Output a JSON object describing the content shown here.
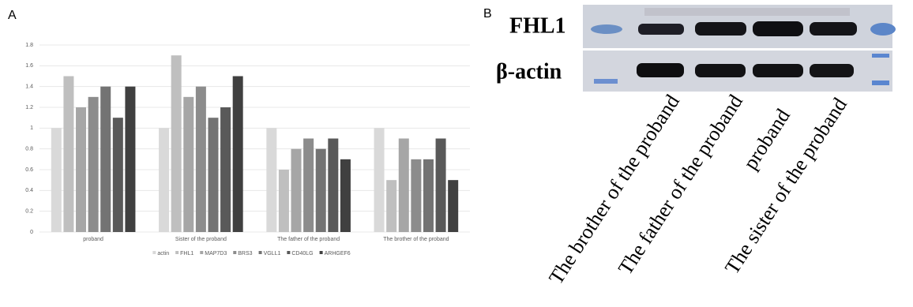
{
  "panel_labels": [
    "A",
    "B"
  ],
  "chart_data": {
    "type": "bar",
    "categories": [
      "proband",
      "Sister of the proband",
      "The father of the proband",
      "The brother of the proband"
    ],
    "series": [
      {
        "name": "actin",
        "color": "#d9d9d9",
        "values": [
          1,
          1,
          1,
          1
        ]
      },
      {
        "name": "FHL1",
        "color": "#bfbfbf",
        "values": [
          1.5,
          1.7,
          0.6,
          0.5
        ]
      },
      {
        "name": "MAP7D3",
        "color": "#a6a6a6",
        "values": [
          1.2,
          1.3,
          0.8,
          0.9
        ]
      },
      {
        "name": "BRS3",
        "color": "#8c8c8c",
        "values": [
          1.3,
          1.4,
          0.9,
          0.7
        ]
      },
      {
        "name": "VGLL1",
        "color": "#737373",
        "values": [
          1.4,
          1.1,
          0.8,
          0.7
        ]
      },
      {
        "name": "CD40LG",
        "color": "#595959",
        "values": [
          1.1,
          1.2,
          0.9,
          0.9
        ]
      },
      {
        "name": "ARHGEF6",
        "color": "#404040",
        "values": [
          1.4,
          1.5,
          0.7,
          0.5
        ]
      }
    ],
    "ylim": [
      0,
      1.8
    ],
    "yticks": [
      0,
      0.2,
      0.4,
      0.6,
      0.8,
      1,
      1.2,
      1.4,
      1.6,
      1.8
    ],
    "grid": true,
    "legend": "bottom"
  },
  "blot": {
    "rows": [
      "FHL1",
      "β-actin"
    ],
    "lanes": [
      "The brother of the proband",
      "The father of the proband",
      "proband",
      "The sister of the proband"
    ]
  }
}
